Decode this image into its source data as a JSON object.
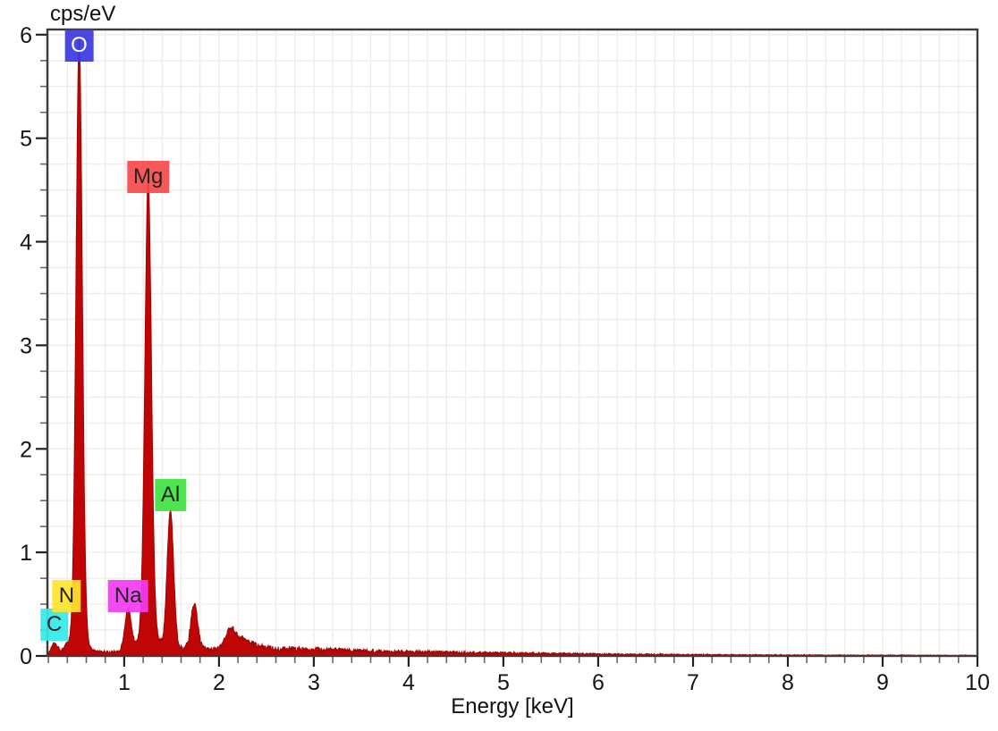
{
  "chart_data": {
    "type": "area",
    "title": "cps/eV",
    "xlabel": "Energy [keV]",
    "ylabel": "",
    "xlim": [
      0.19,
      10.0
    ],
    "ylim": [
      0,
      6.05
    ],
    "x_major_ticks": [
      1,
      2,
      3,
      4,
      5,
      6,
      7,
      8,
      9,
      10
    ],
    "x_minor_step": 0.2,
    "y_major_ticks": [
      0,
      1,
      2,
      3,
      4,
      5,
      6
    ],
    "y_minor_step": 0.25,
    "grid": true,
    "grid_color": "#f0ede8",
    "frame_color": "#3c3c3c",
    "tick_major_color": "#222222",
    "tick_minor_color": "#666666",
    "tick_label_color": "#161616",
    "spectrum_fill": "#c00505",
    "spectrum_stroke": "#a00404",
    "peaks": [
      {
        "element": "C",
        "energy": 0.262,
        "height": 0.095,
        "sigma": 0.03
      },
      {
        "element": "N",
        "energy": 0.392,
        "height": 0.04,
        "sigma": 0.032
      },
      {
        "element": "O",
        "energy": 0.525,
        "height": 5.78,
        "sigma": 0.033
      },
      {
        "element": "O-skirt",
        "energy": 0.525,
        "height": 0.15,
        "sigma": 0.07
      },
      {
        "element": "Na",
        "energy": 1.041,
        "height": 0.4,
        "sigma": 0.034
      },
      {
        "element": "Mg",
        "energy": 1.253,
        "height": 4.35,
        "sigma": 0.034
      },
      {
        "element": "Mg-skirt",
        "energy": 1.253,
        "height": 0.2,
        "sigma": 0.085
      },
      {
        "element": "Al",
        "energy": 1.487,
        "height": 1.33,
        "sigma": 0.034
      },
      {
        "element": "peak-1.74",
        "energy": 1.74,
        "height": 0.435,
        "sigma": 0.035
      },
      {
        "element": "bump-2.12",
        "energy": 2.12,
        "height": 0.16,
        "sigma": 0.045
      },
      {
        "element": "bump-2.23",
        "energy": 2.23,
        "height": 0.09,
        "sigma": 0.1
      }
    ],
    "background_profile": [
      [
        0.19,
        0.015
      ],
      [
        0.3,
        0.045
      ],
      [
        0.45,
        0.05
      ],
      [
        0.6,
        0.04
      ],
      [
        0.8,
        0.038
      ],
      [
        1.0,
        0.045
      ],
      [
        1.2,
        0.055
      ],
      [
        1.45,
        0.07
      ],
      [
        1.6,
        0.08
      ],
      [
        1.9,
        0.065
      ],
      [
        2.4,
        0.08
      ],
      [
        2.8,
        0.07
      ],
      [
        3.2,
        0.06
      ],
      [
        3.6,
        0.05
      ],
      [
        4.0,
        0.042
      ],
      [
        4.5,
        0.035
      ],
      [
        5.0,
        0.03
      ],
      [
        5.5,
        0.024
      ],
      [
        6.0,
        0.019
      ],
      [
        6.5,
        0.016
      ],
      [
        7.0,
        0.013
      ],
      [
        7.5,
        0.011
      ],
      [
        8.0,
        0.009
      ],
      [
        8.5,
        0.008
      ],
      [
        9.0,
        0.007
      ],
      [
        9.5,
        0.006
      ],
      [
        10.0,
        0.005
      ]
    ],
    "element_labels": [
      {
        "symbol": "C",
        "energy": 0.262,
        "anchor_value": 0.15,
        "box_color": "#35eaea",
        "text_color": "#111111"
      },
      {
        "symbol": "N",
        "energy": 0.392,
        "anchor_value": 0.425,
        "box_color": "#ffe52f",
        "text_color": "#111111"
      },
      {
        "symbol": "O",
        "energy": 0.525,
        "anchor_value": 5.74,
        "box_color": "#3a3adf",
        "text_color": "#ffffff"
      },
      {
        "symbol": "Na",
        "energy": 1.041,
        "anchor_value": 0.425,
        "box_color": "#f23cf2",
        "text_color": "#111111"
      },
      {
        "symbol": "Mg",
        "energy": 1.253,
        "anchor_value": 4.47,
        "box_color": "#f94a4a",
        "text_color": "#111111"
      },
      {
        "symbol": "Al",
        "energy": 1.487,
        "anchor_value": 1.4,
        "box_color": "#3fe23f",
        "text_color": "#111111"
      }
    ]
  }
}
